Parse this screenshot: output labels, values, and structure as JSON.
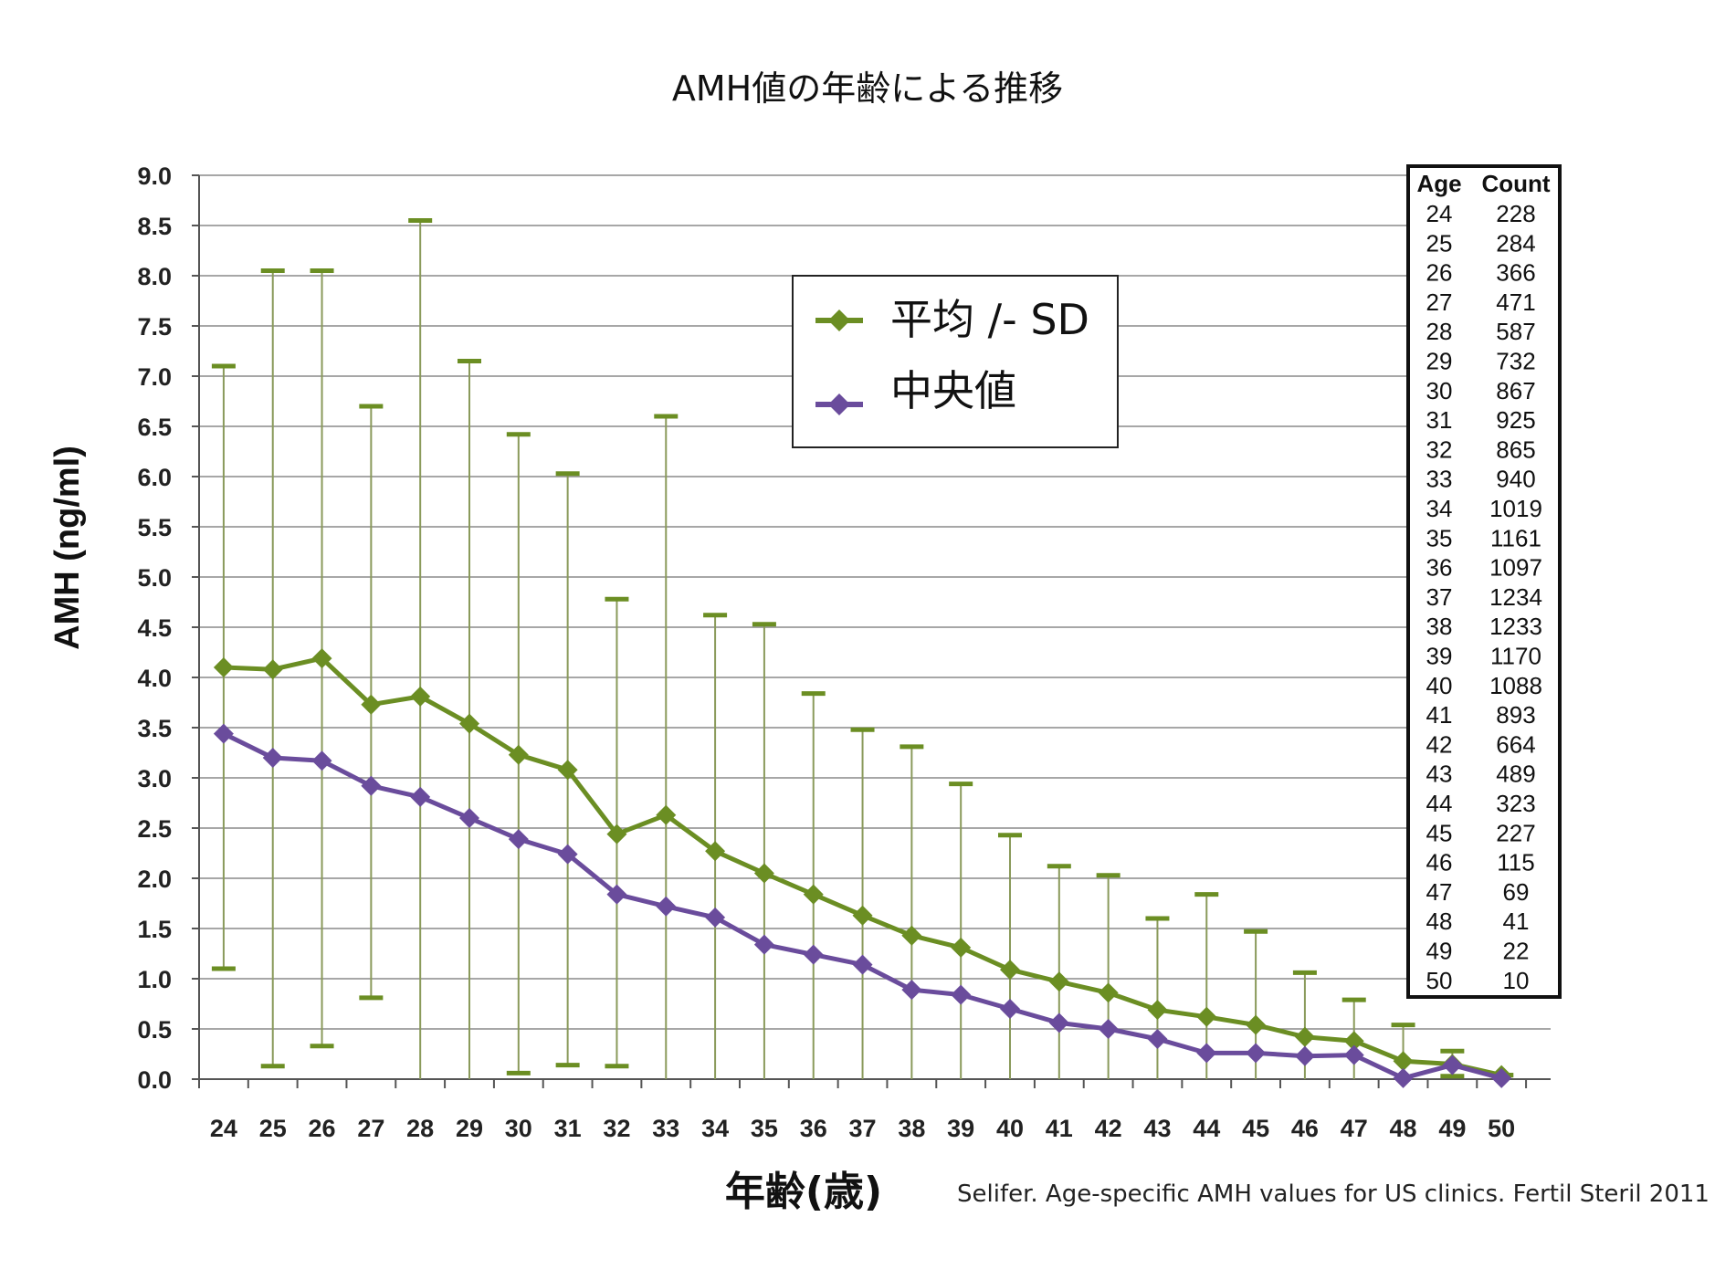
{
  "chart_data": {
    "type": "line",
    "title": "AMH値の年齢による推移",
    "xlabel": "年齢(歳)",
    "ylabel": "AMH (ng/ml)",
    "x": [
      24,
      25,
      26,
      27,
      28,
      29,
      30,
      31,
      32,
      33,
      34,
      35,
      36,
      37,
      38,
      39,
      40,
      41,
      42,
      43,
      44,
      45,
      46,
      47,
      48,
      49,
      50
    ],
    "x_tick_labels": [
      "24",
      "25",
      "26",
      "27",
      "28",
      "29",
      "30",
      "31",
      "32",
      "33",
      "34",
      "35",
      "36",
      "37",
      "38",
      "39",
      "40",
      "41",
      "42",
      "43",
      "44",
      "45",
      "46",
      "47",
      "48",
      "49",
      "50"
    ],
    "ylim": [
      0,
      9
    ],
    "y_tick_labels": [
      "0.0",
      "0.5",
      "1.0",
      "1.5",
      "2.0",
      "2.5",
      "3.0",
      "3.5",
      "4.0",
      "4.5",
      "5.0",
      "5.5",
      "6.0",
      "6.5",
      "7.0",
      "7.5",
      "8.0",
      "8.5",
      "9.0"
    ],
    "grid": "horizontal",
    "series": [
      {
        "name": "平均 /- SD",
        "color": "#6b8e23",
        "marker": "diamond",
        "values": [
          4.1,
          4.08,
          4.19,
          3.73,
          3.81,
          3.54,
          3.23,
          3.08,
          2.44,
          2.63,
          2.27,
          2.05,
          1.84,
          1.63,
          1.43,
          1.31,
          1.09,
          0.97,
          0.86,
          0.69,
          0.62,
          0.54,
          0.42,
          0.38,
          0.18,
          0.15,
          0.04
        ],
        "error_upper": [
          7.1,
          8.05,
          8.05,
          6.7,
          8.55,
          7.15,
          6.42,
          6.03,
          4.78,
          6.6,
          4.62,
          4.53,
          3.84,
          3.48,
          3.31,
          2.94,
          2.43,
          2.12,
          2.03,
          1.6,
          1.84,
          1.47,
          1.06,
          0.79,
          0.54,
          0.28,
          0.04
        ],
        "error_lower": [
          1.1,
          0.13,
          0.33,
          0.81,
          0.0,
          0.0,
          0.06,
          0.14,
          0.13,
          0.0,
          0.0,
          0.0,
          0.0,
          0.0,
          0.0,
          0.0,
          0.0,
          0.0,
          0.0,
          0.0,
          0.0,
          0.0,
          0.0,
          0.0,
          0.0,
          0.03,
          0.04
        ]
      },
      {
        "name": "中央値",
        "color": "#6a4c9c",
        "marker": "diamond",
        "values": [
          3.44,
          3.2,
          3.17,
          2.92,
          2.81,
          2.6,
          2.39,
          2.24,
          1.84,
          1.72,
          1.61,
          1.34,
          1.24,
          1.14,
          0.89,
          0.84,
          0.7,
          0.56,
          0.5,
          0.4,
          0.26,
          0.26,
          0.23,
          0.24,
          0.01,
          0.14,
          0.01
        ]
      }
    ],
    "legend": {
      "placement": "upper-center"
    },
    "count_table": {
      "headers": [
        "Age",
        "Count"
      ],
      "rows": [
        [
          "24",
          "228"
        ],
        [
          "25",
          "284"
        ],
        [
          "26",
          "366"
        ],
        [
          "27",
          "471"
        ],
        [
          "28",
          "587"
        ],
        [
          "29",
          "732"
        ],
        [
          "30",
          "867"
        ],
        [
          "31",
          "925"
        ],
        [
          "32",
          "865"
        ],
        [
          "33",
          "940"
        ],
        [
          "34",
          "1019"
        ],
        [
          "35",
          "1161"
        ],
        [
          "36",
          "1097"
        ],
        [
          "37",
          "1234"
        ],
        [
          "38",
          "1233"
        ],
        [
          "39",
          "1170"
        ],
        [
          "40",
          "1088"
        ],
        [
          "41",
          "893"
        ],
        [
          "42",
          "664"
        ],
        [
          "43",
          "489"
        ],
        [
          "44",
          "323"
        ],
        [
          "45",
          "227"
        ],
        [
          "46",
          "115"
        ],
        [
          "47",
          "69"
        ],
        [
          "48",
          "41"
        ],
        [
          "49",
          "22"
        ],
        [
          "50",
          "10"
        ]
      ]
    },
    "source": "Selifer. Age-specific AMH values for US clinics. Fertil Steril 2011"
  }
}
